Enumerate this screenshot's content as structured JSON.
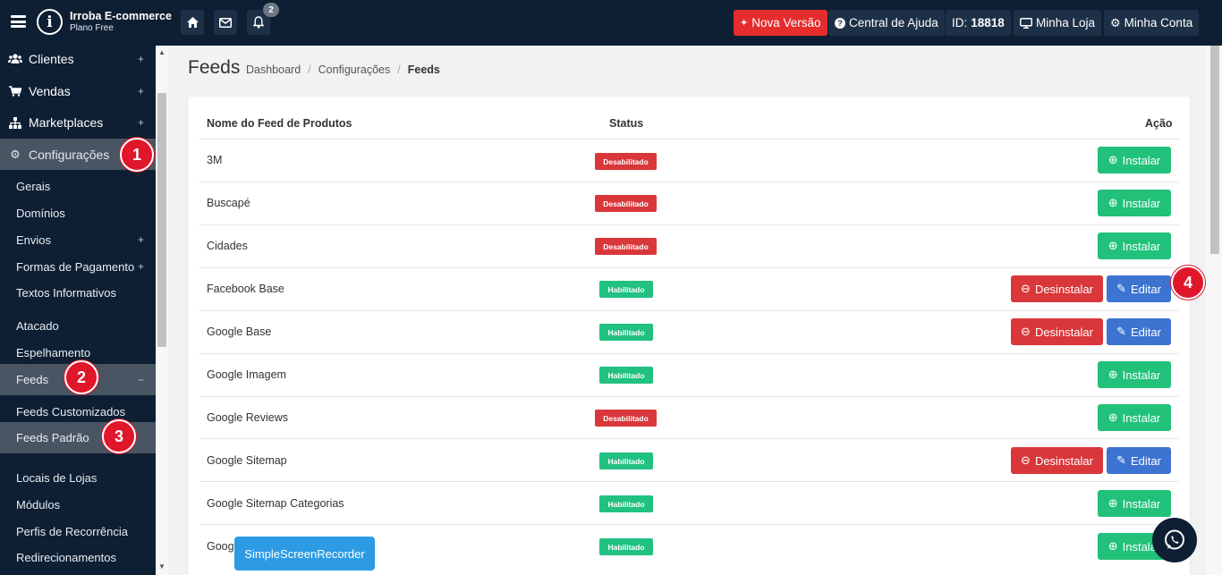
{
  "brand": {
    "name": "Irroba E-commerce",
    "plan": "Plano Free",
    "logo_letter": "i"
  },
  "topbar": {
    "notification_count": "2",
    "new_version": "Nova Versão",
    "help": "Central de Ajuda",
    "id_label": "ID:",
    "id_value": "18818",
    "store": "Minha Loja",
    "account": "Minha Conta",
    "new_version_color": "#e52d2d"
  },
  "sidebar": {
    "items": [
      {
        "label": "Clientes",
        "icon": "users-icon"
      },
      {
        "label": "Vendas",
        "icon": "cart-icon"
      },
      {
        "label": "Marketplaces",
        "icon": "sitemap-icon"
      },
      {
        "label": "Configurações",
        "icon": "gears-icon"
      }
    ],
    "sub": [
      "Gerais",
      "Domínios",
      "Envios",
      "Formas de Pagamento",
      "Textos Informativos",
      "Atacado",
      "Espelhamento",
      "Feeds",
      "Feeds Customizados",
      "Feeds Padrão",
      "Locais de Lojas",
      "Módulos",
      "Perfis de Recorrência",
      "Redirecionamentos"
    ]
  },
  "page": {
    "title": "Feeds",
    "breadcrumb": [
      "Dashboard",
      "Configurações",
      "Feeds"
    ]
  },
  "table": {
    "headers": {
      "name": "Nome do Feed de Produtos",
      "status": "Status",
      "action": "Ação"
    },
    "rows": [
      {
        "name": "3M",
        "status": "Desabilitado"
      },
      {
        "name": "Buscapé",
        "status": "Desabilitado"
      },
      {
        "name": "Cidades",
        "status": "Desabilitado"
      },
      {
        "name": "Facebook Base",
        "status": "Habilitado"
      },
      {
        "name": "Google Base",
        "status": "Habilitado"
      },
      {
        "name": "Google Imagem",
        "status": "Habilitado"
      },
      {
        "name": "Google Reviews",
        "status": "Desabilitado"
      },
      {
        "name": "Google Sitemap",
        "status": "Habilitado"
      },
      {
        "name": "Google Sitemap Categorias",
        "status": "Habilitado"
      },
      {
        "name": "Goog",
        "status": "Habilitado"
      }
    ],
    "buttons": {
      "install": "Instalar",
      "uninstall": "Desinstalar",
      "edit": "Editar"
    }
  },
  "markers": [
    "1",
    "2",
    "3",
    "4"
  ],
  "overlay": {
    "recorder": "SimpleScreenRecorder"
  },
  "colors": {
    "enabled": "#21c181",
    "disabled": "#d9373a",
    "install": "#21c17a",
    "edit": "#3d74d1",
    "sidebar": "#0e1f33",
    "marker": "#e0162b"
  }
}
